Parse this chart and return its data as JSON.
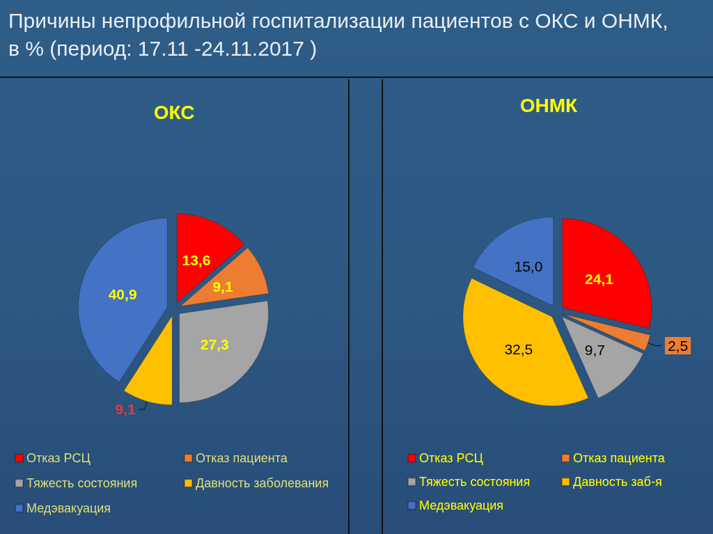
{
  "chart_data": [
    {
      "type": "pie",
      "title": "ОКС",
      "annotations": [
        "Причины непрофильной госпитализации пациентов с ОКС и ОНМК, в % (период: 17.11 -24.11.2017 )"
      ],
      "categories": [
        "Отказ РСЦ",
        "Отказ пациента",
        "Тяжесть состояния",
        "Давность заболевания",
        "Медэвакуация"
      ],
      "values": [
        13.6,
        9.1,
        27.3,
        9.1,
        40.9
      ],
      "value_labels": [
        "13,6",
        "9,1",
        "27,3",
        "9,1",
        "40,9"
      ],
      "colors": [
        "#ff0000",
        "#ed7d31",
        "#a5a5a5",
        "#ffc000",
        "#4472c4"
      ],
      "legend": "bottom"
    },
    {
      "type": "pie",
      "title": "ОНМК",
      "categories": [
        "Отказ РСЦ",
        "Отказ пациента",
        "Тяжесть состояния",
        "Давность заб-я",
        "Медэвакуация"
      ],
      "values": [
        24.1,
        2.5,
        9.7,
        32.5,
        15.0
      ],
      "value_labels": [
        "24,1",
        "2,5",
        "9,7",
        "32,5",
        "15,0"
      ],
      "colors": [
        "#ff0000",
        "#ed7d31",
        "#a5a5a5",
        "#ffc000",
        "#4472c4"
      ],
      "legend": "bottom"
    }
  ]
}
